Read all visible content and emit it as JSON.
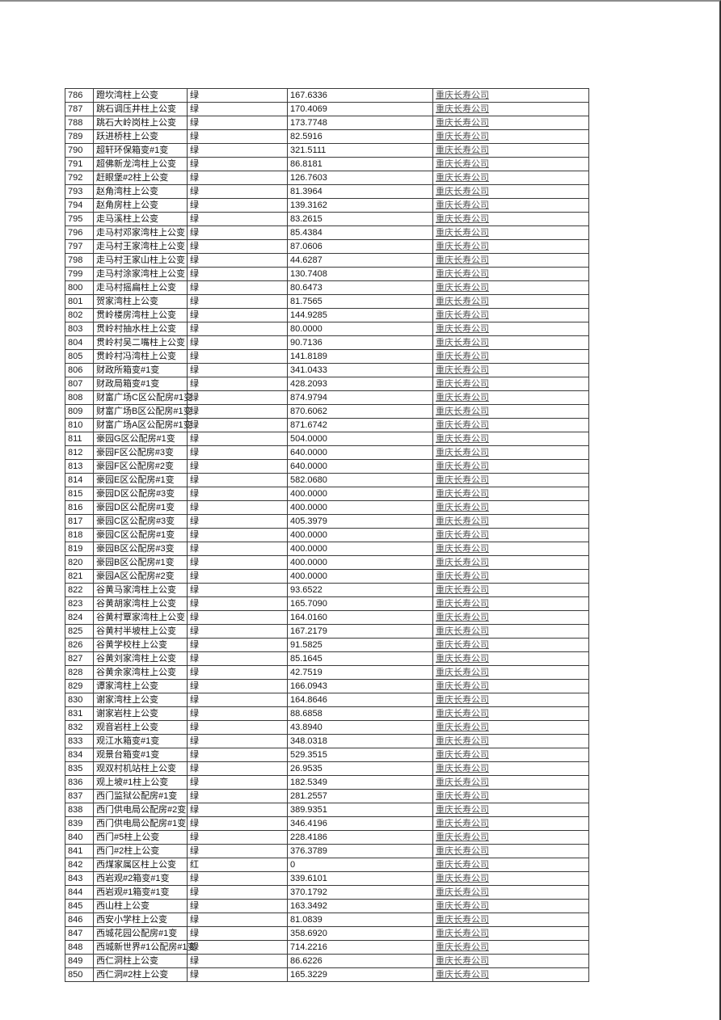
{
  "colors": {
    "link_color": "#545454",
    "border_color": "#3a3a3a",
    "text_color": "#141414",
    "page_background": "#ffffff"
  },
  "table": {
    "column_keys": [
      "id",
      "name",
      "status",
      "value",
      "company"
    ],
    "rows": [
      {
        "id": "786",
        "name": "蹬坎湾柱上公变",
        "status": "绿",
        "value": "167.6336",
        "company": "重庆长寿公司"
      },
      {
        "id": "787",
        "name": "跳石调压井柱上公变",
        "status": "绿",
        "value": "170.4069",
        "company": "重庆长寿公司"
      },
      {
        "id": "788",
        "name": "跳石大岭岗柱上公变",
        "status": "绿",
        "value": "173.7748",
        "company": "重庆长寿公司"
      },
      {
        "id": "789",
        "name": "跃进桥柱上公变",
        "status": "绿",
        "value": "82.5916",
        "company": "重庆长寿公司"
      },
      {
        "id": "790",
        "name": "超轩环保箱变#1变",
        "status": "绿",
        "value": "321.5111",
        "company": "重庆长寿公司"
      },
      {
        "id": "791",
        "name": "超佛新龙湾柱上公变",
        "status": "绿",
        "value": "86.8181",
        "company": "重庆长寿公司"
      },
      {
        "id": "792",
        "name": "赶眼堡#2柱上公变",
        "status": "绿",
        "value": "126.7603",
        "company": "重庆长寿公司"
      },
      {
        "id": "793",
        "name": "赵角湾柱上公变",
        "status": "绿",
        "value": "81.3964",
        "company": "重庆长寿公司"
      },
      {
        "id": "794",
        "name": "赵角房柱上公变",
        "status": "绿",
        "value": "139.3162",
        "company": "重庆长寿公司"
      },
      {
        "id": "795",
        "name": "走马溪柱上公变",
        "status": "绿",
        "value": "83.2615",
        "company": "重庆长寿公司"
      },
      {
        "id": "796",
        "name": "走马村邓家湾柱上公变",
        "status": "绿",
        "value": "85.4384",
        "company": "重庆长寿公司"
      },
      {
        "id": "797",
        "name": "走马村王家湾柱上公变",
        "status": "绿",
        "value": "87.0606",
        "company": "重庆长寿公司"
      },
      {
        "id": "798",
        "name": "走马村王家山柱上公变",
        "status": "绿",
        "value": "44.6287",
        "company": "重庆长寿公司"
      },
      {
        "id": "799",
        "name": "走马村涂家湾柱上公变",
        "status": "绿",
        "value": "130.7408",
        "company": "重庆长寿公司"
      },
      {
        "id": "800",
        "name": "走马村摇扁柱上公变",
        "status": "绿",
        "value": "80.6473",
        "company": "重庆长寿公司"
      },
      {
        "id": "801",
        "name": "贺家湾柱上公变",
        "status": "绿",
        "value": "81.7565",
        "company": "重庆长寿公司"
      },
      {
        "id": "802",
        "name": "贯岭楼房湾柱上公变",
        "status": "绿",
        "value": "144.9285",
        "company": "重庆长寿公司"
      },
      {
        "id": "803",
        "name": "贯岭村抽水柱上公变",
        "status": "绿",
        "value": "80.0000",
        "company": "重庆长寿公司"
      },
      {
        "id": "804",
        "name": "贯岭村吴二嘴柱上公变",
        "status": "绿",
        "value": "90.7136",
        "company": "重庆长寿公司"
      },
      {
        "id": "805",
        "name": "贯岭村冯湾柱上公变",
        "status": "绿",
        "value": "141.8189",
        "company": "重庆长寿公司"
      },
      {
        "id": "806",
        "name": "财政所箱变#1变",
        "status": "绿",
        "value": "341.0433",
        "company": "重庆长寿公司"
      },
      {
        "id": "807",
        "name": "财政局箱变#1变",
        "status": "绿",
        "value": "428.2093",
        "company": "重庆长寿公司"
      },
      {
        "id": "808",
        "name": "财富广场C区公配房#1变",
        "status": "绿",
        "value": "874.9794",
        "company": "重庆长寿公司"
      },
      {
        "id": "809",
        "name": "财富广场B区公配房#1变",
        "status": "绿",
        "value": "870.6062",
        "company": "重庆长寿公司"
      },
      {
        "id": "810",
        "name": "财富广场A区公配房#1变",
        "status": "绿",
        "value": "871.6742",
        "company": "重庆长寿公司"
      },
      {
        "id": "811",
        "name": "豪园G区公配房#1变",
        "status": "绿",
        "value": "504.0000",
        "company": "重庆长寿公司"
      },
      {
        "id": "812",
        "name": "豪园F区公配房#3变",
        "status": "绿",
        "value": "640.0000",
        "company": "重庆长寿公司"
      },
      {
        "id": "813",
        "name": "豪园F区公配房#2变",
        "status": "绿",
        "value": "640.0000",
        "company": "重庆长寿公司"
      },
      {
        "id": "814",
        "name": "豪园E区公配房#1变",
        "status": "绿",
        "value": "582.0680",
        "company": "重庆长寿公司"
      },
      {
        "id": "815",
        "name": "豪园D区公配房#3变",
        "status": "绿",
        "value": "400.0000",
        "company": "重庆长寿公司"
      },
      {
        "id": "816",
        "name": "豪园D区公配房#1变",
        "status": "绿",
        "value": "400.0000",
        "company": "重庆长寿公司"
      },
      {
        "id": "817",
        "name": "豪园C区公配房#3变",
        "status": "绿",
        "value": "405.3979",
        "company": "重庆长寿公司"
      },
      {
        "id": "818",
        "name": "豪园C区公配房#1变",
        "status": "绿",
        "value": "400.0000",
        "company": "重庆长寿公司"
      },
      {
        "id": "819",
        "name": "豪园B区公配房#3变",
        "status": "绿",
        "value": "400.0000",
        "company": "重庆长寿公司"
      },
      {
        "id": "820",
        "name": "豪园B区公配房#1变",
        "status": "绿",
        "value": "400.0000",
        "company": "重庆长寿公司"
      },
      {
        "id": "821",
        "name": "豪园A区公配房#2变",
        "status": "绿",
        "value": "400.0000",
        "company": "重庆长寿公司"
      },
      {
        "id": "822",
        "name": "谷黄马家湾柱上公变",
        "status": "绿",
        "value": "93.6522",
        "company": "重庆长寿公司"
      },
      {
        "id": "823",
        "name": "谷黄胡家湾柱上公变",
        "status": "绿",
        "value": "165.7090",
        "company": "重庆长寿公司"
      },
      {
        "id": "824",
        "name": "谷黄村覃家湾柱上公变",
        "status": "绿",
        "value": "164.0160",
        "company": "重庆长寿公司"
      },
      {
        "id": "825",
        "name": "谷黄村半坡柱上公变",
        "status": "绿",
        "value": "167.2179",
        "company": "重庆长寿公司"
      },
      {
        "id": "826",
        "name": "谷黄学校柱上公变",
        "status": "绿",
        "value": "91.5825",
        "company": "重庆长寿公司"
      },
      {
        "id": "827",
        "name": "谷黄刘家湾柱上公变",
        "status": "绿",
        "value": "85.1645",
        "company": "重庆长寿公司"
      },
      {
        "id": "828",
        "name": "谷黄余家湾柱上公变",
        "status": "绿",
        "value": "42.7519",
        "company": "重庆长寿公司"
      },
      {
        "id": "829",
        "name": "谭家湾柱上公变",
        "status": "绿",
        "value": "166.0943",
        "company": "重庆长寿公司"
      },
      {
        "id": "830",
        "name": "谢家湾柱上公变",
        "status": "绿",
        "value": "164.8646",
        "company": "重庆长寿公司"
      },
      {
        "id": "831",
        "name": "谢家岩柱上公变",
        "status": "绿",
        "value": "88.6858",
        "company": "重庆长寿公司"
      },
      {
        "id": "832",
        "name": "观音岩柱上公变",
        "status": "绿",
        "value": "43.8940",
        "company": "重庆长寿公司"
      },
      {
        "id": "833",
        "name": "观江水箱变#1变",
        "status": "绿",
        "value": "348.0318",
        "company": "重庆长寿公司"
      },
      {
        "id": "834",
        "name": "观景台箱变#1变",
        "status": "绿",
        "value": "529.3515",
        "company": "重庆长寿公司"
      },
      {
        "id": "835",
        "name": "观双村机站柱上公变",
        "status": "绿",
        "value": "26.9535",
        "company": "重庆长寿公司"
      },
      {
        "id": "836",
        "name": "观上坡#1柱上公变",
        "status": "绿",
        "value": "182.5349",
        "company": "重庆长寿公司"
      },
      {
        "id": "837",
        "name": "西门监狱公配房#1变",
        "status": "绿",
        "value": "281.2557",
        "company": "重庆长寿公司"
      },
      {
        "id": "838",
        "name": "西门供电局公配房#2变",
        "status": "绿",
        "value": "389.9351",
        "company": "重庆长寿公司"
      },
      {
        "id": "839",
        "name": "西门供电局公配房#1变",
        "status": "绿",
        "value": "346.4196",
        "company": "重庆长寿公司"
      },
      {
        "id": "840",
        "name": "西门#5柱上公变",
        "status": "绿",
        "value": "228.4186",
        "company": "重庆长寿公司"
      },
      {
        "id": "841",
        "name": "西门#2柱上公变",
        "status": "绿",
        "value": "376.3789",
        "company": "重庆长寿公司"
      },
      {
        "id": "842",
        "name": "西煤家属区柱上公变",
        "status": "红",
        "value": "0",
        "company": "重庆长寿公司"
      },
      {
        "id": "843",
        "name": "西岩观#2箱变#1变",
        "status": "绿",
        "value": "339.6101",
        "company": "重庆长寿公司"
      },
      {
        "id": "844",
        "name": "西岩观#1箱变#1变",
        "status": "绿",
        "value": "370.1792",
        "company": "重庆长寿公司"
      },
      {
        "id": "845",
        "name": "西山柱上公变",
        "status": "绿",
        "value": "163.3492",
        "company": "重庆长寿公司"
      },
      {
        "id": "846",
        "name": "西安小学柱上公变",
        "status": "绿",
        "value": "81.0839",
        "company": "重庆长寿公司"
      },
      {
        "id": "847",
        "name": "西城花园公配房#1变",
        "status": "绿",
        "value": "358.6920",
        "company": "重庆长寿公司"
      },
      {
        "id": "848",
        "name": "西城新世界#1公配房#1变",
        "status": "绿",
        "value": "714.2216",
        "company": "重庆长寿公司"
      },
      {
        "id": "849",
        "name": "西仁洞柱上公变",
        "status": "绿",
        "value": "86.6226",
        "company": "重庆长寿公司"
      },
      {
        "id": "850",
        "name": "西仁洞#2柱上公变",
        "status": "绿",
        "value": "165.3229",
        "company": "重庆长寿公司"
      }
    ]
  }
}
